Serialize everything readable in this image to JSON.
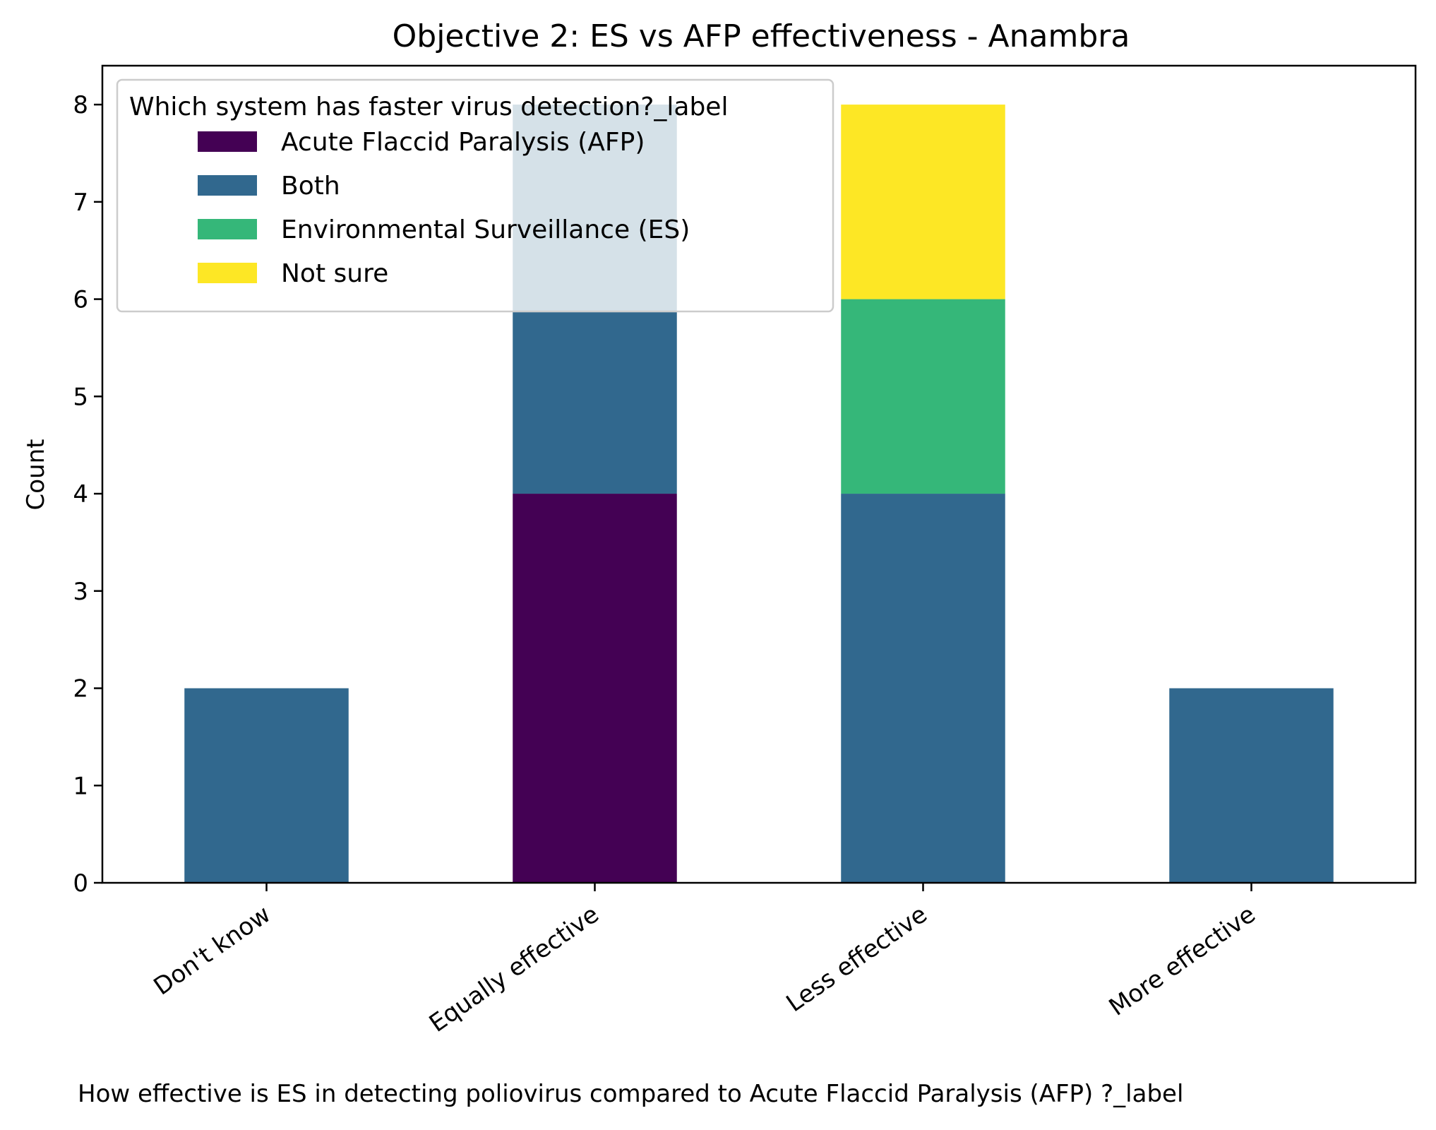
{
  "chart_data": {
    "type": "bar",
    "stacked": true,
    "title": "Objective 2: ES vs AFP effectiveness - Anambra",
    "xlabel": "How effective is ES in detecting poliovirus compared to  Acute Flaccid Paralysis (AFP) ?_label",
    "ylabel": "Count",
    "categories": [
      "Don't know",
      "Equally effective",
      "Less effective",
      "More effective"
    ],
    "ylim": [
      0,
      8.4
    ],
    "yticks": [
      "0",
      "1",
      "2",
      "3",
      "4",
      "5",
      "6",
      "7",
      "8"
    ],
    "legend": {
      "title": "Which system has faster virus detection?_label",
      "placement": "upper-left"
    },
    "series": [
      {
        "name": "Acute Flaccid Paralysis (AFP)",
        "color": "#440154",
        "values": [
          0,
          4,
          0,
          0
        ]
      },
      {
        "name": "Both",
        "color": "#31688e",
        "values": [
          2,
          4,
          4,
          2
        ]
      },
      {
        "name": "Environmental Surveillance (ES)",
        "color": "#35b779",
        "values": [
          0,
          0,
          2,
          0
        ]
      },
      {
        "name": "Not sure",
        "color": "#fde725",
        "values": [
          0,
          0,
          2,
          0
        ]
      }
    ],
    "grid": false
  }
}
